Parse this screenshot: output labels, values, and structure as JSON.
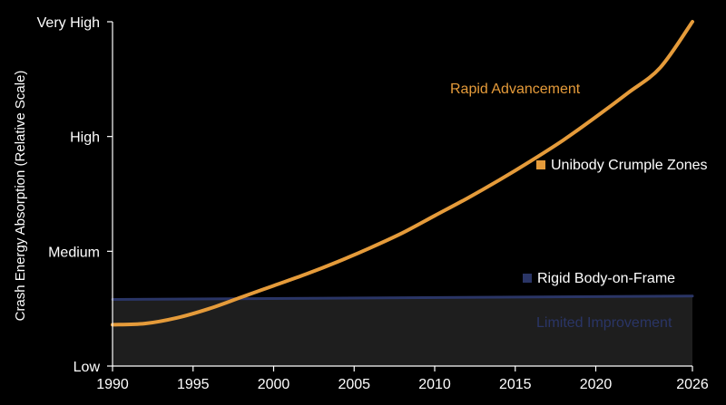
{
  "chart_data": {
    "type": "line",
    "ylabel": "Crash Energy Absorption (Relative Scale)",
    "xlim": [
      1990,
      2026
    ],
    "x_ticks": [
      "1990",
      "1995",
      "2000",
      "2005",
      "2010",
      "2015",
      "2020",
      "2026"
    ],
    "x_tick_values": [
      1990,
      1995,
      2000,
      2005,
      2010,
      2015,
      2020,
      2026
    ],
    "ylim": [
      0,
      3
    ],
    "y_ticks": [
      "Low",
      "Medium",
      "High",
      "Very High"
    ],
    "y_tick_values": [
      0,
      1,
      2,
      3
    ],
    "series": [
      {
        "name": "Unibody Crumple Zones",
        "color": "#E59B3A",
        "x": [
          1990,
          1992,
          1994,
          1996,
          1998,
          2000,
          2002,
          2004,
          2006,
          2008,
          2010,
          2012,
          2014,
          2016,
          2018,
          2020,
          2022,
          2024,
          2026
        ],
        "y": [
          0.36,
          0.37,
          0.42,
          0.5,
          0.6,
          0.7,
          0.8,
          0.91,
          1.03,
          1.16,
          1.31,
          1.46,
          1.62,
          1.79,
          1.97,
          2.17,
          2.38,
          2.6,
          3.0
        ]
      },
      {
        "name": "Rigid Body-on-Frame",
        "color": "#2A3566",
        "x": [
          1990,
          2026
        ],
        "y": [
          0.58,
          0.61
        ]
      }
    ],
    "legend": "inline, right",
    "annotations": [
      {
        "text": "Rapid Advancement",
        "color": "#E59B3A"
      },
      {
        "text": "Limited Improvement",
        "color": "#2A3566"
      }
    ],
    "shaded_region": {
      "series": "Rigid Body-on-Frame",
      "fill": "#1E1E1E"
    },
    "grid": false
  }
}
